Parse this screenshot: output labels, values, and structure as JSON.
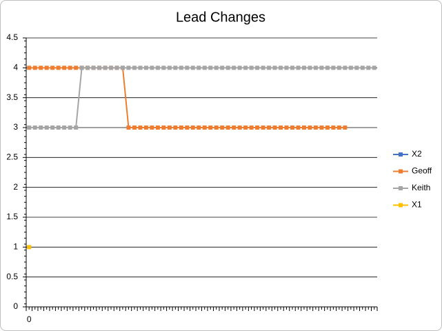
{
  "chart_data": {
    "type": "line",
    "title": "Lead Changes",
    "categories": [
      "0",
      null,
      null,
      null,
      null,
      null,
      null,
      null,
      null,
      null,
      null,
      null,
      null,
      null,
      null,
      null,
      null,
      null,
      null,
      null,
      null,
      null,
      null,
      null,
      null,
      null,
      null,
      null,
      null,
      null,
      null,
      null,
      null,
      null,
      null,
      null,
      null,
      null,
      null,
      null,
      null,
      null,
      null,
      null,
      null,
      null,
      null,
      null,
      null,
      null,
      null,
      null,
      null,
      null,
      null,
      null,
      null,
      null,
      null,
      null
    ],
    "series": [
      {
        "name": "X2",
        "color": "#4472c4",
        "values": [
          null,
          null,
          null,
          null,
          null,
          null,
          null,
          null,
          null,
          null,
          null,
          null,
          null,
          null,
          null,
          null,
          null,
          null,
          null,
          null,
          null,
          null,
          null,
          null,
          null,
          null,
          null,
          null,
          null,
          null,
          null,
          null,
          null,
          null,
          null,
          null,
          null,
          null,
          null,
          null,
          null,
          null,
          null,
          null,
          null,
          null,
          null,
          null,
          null,
          null,
          null,
          null,
          null,
          null,
          null,
          null,
          null,
          null,
          null,
          null
        ]
      },
      {
        "name": "Geoff",
        "color": "#ed7d31",
        "values": [
          4,
          4,
          4,
          4,
          4,
          4,
          4,
          4,
          4,
          4,
          4,
          4,
          4,
          4,
          4,
          4,
          4,
          3,
          3,
          3,
          3,
          3,
          3,
          3,
          3,
          3,
          3,
          3,
          3,
          3,
          3,
          3,
          3,
          3,
          3,
          3,
          3,
          3,
          3,
          3,
          3,
          3,
          3,
          3,
          3,
          3,
          3,
          3,
          3,
          3,
          3,
          3,
          3,
          3,
          3,
          null,
          null,
          null,
          null,
          null
        ]
      },
      {
        "name": "Keith",
        "color": "#a5a5a5",
        "values": [
          3,
          3,
          3,
          3,
          3,
          3,
          3,
          3,
          3,
          4,
          4,
          4,
          4,
          4,
          4,
          4,
          4,
          4,
          4,
          4,
          4,
          4,
          4,
          4,
          4,
          4,
          4,
          4,
          4,
          4,
          4,
          4,
          4,
          4,
          4,
          4,
          4,
          4,
          4,
          4,
          4,
          4,
          4,
          4,
          4,
          4,
          4,
          4,
          4,
          4,
          4,
          4,
          4,
          4,
          4,
          4,
          4,
          4,
          4,
          4
        ]
      },
      {
        "name": "X1",
        "color": "#ffc000",
        "values": [
          1,
          null,
          null,
          null,
          null,
          null,
          null,
          null,
          null,
          null,
          null,
          null,
          null,
          null,
          null,
          null,
          null,
          null,
          null,
          null,
          null,
          null,
          null,
          null,
          null,
          null,
          null,
          null,
          null,
          null,
          null,
          null,
          null,
          null,
          null,
          null,
          null,
          null,
          null,
          null,
          null,
          null,
          null,
          null,
          null,
          null,
          null,
          null,
          null,
          null,
          null,
          null,
          null,
          null,
          null,
          null,
          null,
          null,
          null,
          null
        ]
      }
    ],
    "ylim": [
      0,
      4.5
    ],
    "yticks": [
      0,
      0.5,
      1,
      1.5,
      2,
      2.5,
      3,
      3.5,
      4,
      4.5
    ],
    "grid": true,
    "legend": "right"
  }
}
